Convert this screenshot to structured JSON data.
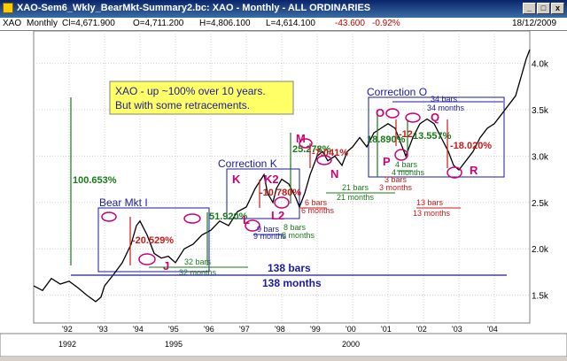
{
  "window": {
    "title": "XAO-Sem6_Wkly_BearMkt-Summary2.bc: XAO - Monthly - ALL ORDINARIES",
    "minimize": "_",
    "maximize": "□",
    "close": "x"
  },
  "infobar": {
    "symbol": "XAO",
    "period": "Monthly",
    "close": "Cl=4,671.900",
    "open": "O=4,711.200",
    "high": "H=4,806.100",
    "low": "L=4,614.100",
    "change": "-43.600",
    "change_pct": "-0.92%",
    "date": "18/12/2009"
  },
  "chart_data": {
    "type": "line",
    "series": [
      {
        "values": [
          [
            1991.0,
            1.6
          ],
          [
            1991.25,
            1.55
          ],
          [
            1991.5,
            1.68
          ],
          [
            1991.75,
            1.62
          ],
          [
            1992.0,
            1.65
          ],
          [
            1992.25,
            1.58
          ],
          [
            1992.5,
            1.5
          ],
          [
            1992.75,
            1.43
          ],
          [
            1992.9,
            1.48
          ],
          [
            1993.0,
            1.6
          ],
          [
            1993.25,
            1.72
          ],
          [
            1993.5,
            1.85
          ],
          [
            1993.75,
            2.05
          ],
          [
            1993.9,
            2.25
          ],
          [
            1994.0,
            2.3
          ],
          [
            1994.2,
            2.15
          ],
          [
            1994.4,
            1.95
          ],
          [
            1994.6,
            1.9
          ],
          [
            1994.8,
            1.92
          ],
          [
            1995.0,
            1.85
          ],
          [
            1995.25,
            2.0
          ],
          [
            1995.5,
            2.05
          ],
          [
            1995.75,
            2.15
          ],
          [
            1996.0,
            2.2
          ],
          [
            1996.25,
            2.3
          ],
          [
            1996.5,
            2.25
          ],
          [
            1996.75,
            2.4
          ],
          [
            1997.0,
            2.45
          ],
          [
            1997.25,
            2.65
          ],
          [
            1997.5,
            2.8
          ],
          [
            1997.6,
            2.6
          ],
          [
            1997.75,
            2.5
          ],
          [
            1997.85,
            2.65
          ],
          [
            1998.0,
            2.75
          ],
          [
            1998.2,
            2.7
          ],
          [
            1998.4,
            2.55
          ],
          [
            1998.5,
            2.45
          ],
          [
            1998.65,
            2.6
          ],
          [
            1998.8,
            2.8
          ],
          [
            1999.0,
            3.0
          ],
          [
            1999.15,
            3.05
          ],
          [
            1999.3,
            2.95
          ],
          [
            1999.5,
            3.0
          ],
          [
            1999.7,
            2.9
          ],
          [
            1999.85,
            3.05
          ],
          [
            2000.0,
            3.1
          ],
          [
            2000.2,
            3.2
          ],
          [
            2000.4,
            3.1
          ],
          [
            2000.6,
            3.25
          ],
          [
            2000.8,
            3.3
          ],
          [
            2001.0,
            3.35
          ],
          [
            2001.2,
            3.3
          ],
          [
            2001.35,
            3.15
          ],
          [
            2001.5,
            3.0
          ],
          [
            2001.7,
            3.2
          ],
          [
            2001.9,
            3.35
          ],
          [
            2002.1,
            3.4
          ],
          [
            2002.3,
            3.35
          ],
          [
            2002.5,
            3.2
          ],
          [
            2002.7,
            3.05
          ],
          [
            2002.85,
            2.9
          ],
          [
            2003.0,
            2.85
          ],
          [
            2003.2,
            2.95
          ],
          [
            2003.4,
            3.05
          ],
          [
            2003.6,
            3.2
          ],
          [
            2003.8,
            3.3
          ],
          [
            2004.0,
            3.35
          ],
          [
            2004.2,
            3.45
          ],
          [
            2004.4,
            3.55
          ],
          [
            2004.6,
            3.65
          ],
          [
            2004.75,
            3.85
          ],
          [
            2004.9,
            4.05
          ],
          [
            2005.0,
            4.15
          ]
        ]
      }
    ],
    "y_ticks": [
      "1.5k",
      "2.0k",
      "2.5k",
      "3.0k",
      "3.5k",
      "4.0k"
    ],
    "y_tick_values": [
      1.5,
      2.0,
      2.5,
      3.0,
      3.5,
      4.0
    ],
    "x_ticks": [
      "'92",
      "'93",
      "'94",
      "'95",
      "'96",
      "'97",
      "'98",
      "'99",
      "'00",
      "'01",
      "'02",
      "'03",
      "'04"
    ],
    "x_tick_values": [
      1992,
      1993,
      1994,
      1995,
      1996,
      1997,
      1998,
      1999,
      2000,
      2001,
      2002,
      2003,
      2004
    ],
    "year_labels": [
      "1992",
      "1995",
      "2000"
    ],
    "ylim": [
      1.2,
      4.35
    ],
    "xlim": [
      1991.0,
      2005.0
    ],
    "grid": true
  },
  "annotations": {
    "headline_line1": "XAO - up ~100% over 10 years.",
    "headline_line2": "But with some retracements.",
    "pct_100": "100.653%",
    "bear_mkt": "Bear Mkt I",
    "label_j": "J",
    "pct_20": "-20.529%",
    "bars_32": "32 bars",
    "months_32": "32 months",
    "pct_51": "51.920%",
    "correction_k": "Correction K",
    "label_k": "K",
    "label_k2": "K2",
    "label_l": "L",
    "label_l2": "L2",
    "pct_10": "-10.780%",
    "bars_9": "9 bars",
    "months_9": "9 months",
    "bars_8": "8 bars",
    "months_8": "8 months",
    "label_m": "M",
    "label_n": "N",
    "pct_7": "-7.041%",
    "pct_25": "25.278%",
    "bars_6": "6 bars",
    "months_6": "6 months",
    "bars_21": "21 bars",
    "months_21": "21 months",
    "correction_o": "Correction O",
    "label_o": "O",
    "label_p": "P",
    "label_q": "Q",
    "label_r": "R",
    "pct_18_890": "18.890%",
    "pct_12": "-12",
    "pct_13_557": "13.557%",
    "pct_18_020": "-18.020%",
    "bars_34": "34 bars",
    "months_34": "34 months",
    "bars_4": "4 bars",
    "months_4": "4 months",
    "bars_3": "3 bars",
    "months_3": "3 months",
    "bars_13": "13 bars",
    "months_13": "13 months",
    "bars_138": "138 bars",
    "months_138": "138 months"
  },
  "colors": {
    "price_line": "#000000",
    "green": "#1a7a1a",
    "red": "#cc1a1a",
    "blue": "#1a1aa0",
    "magenta": "#cc0077",
    "headline_bg": "#ffff66",
    "grid": "#d0d0d0"
  }
}
